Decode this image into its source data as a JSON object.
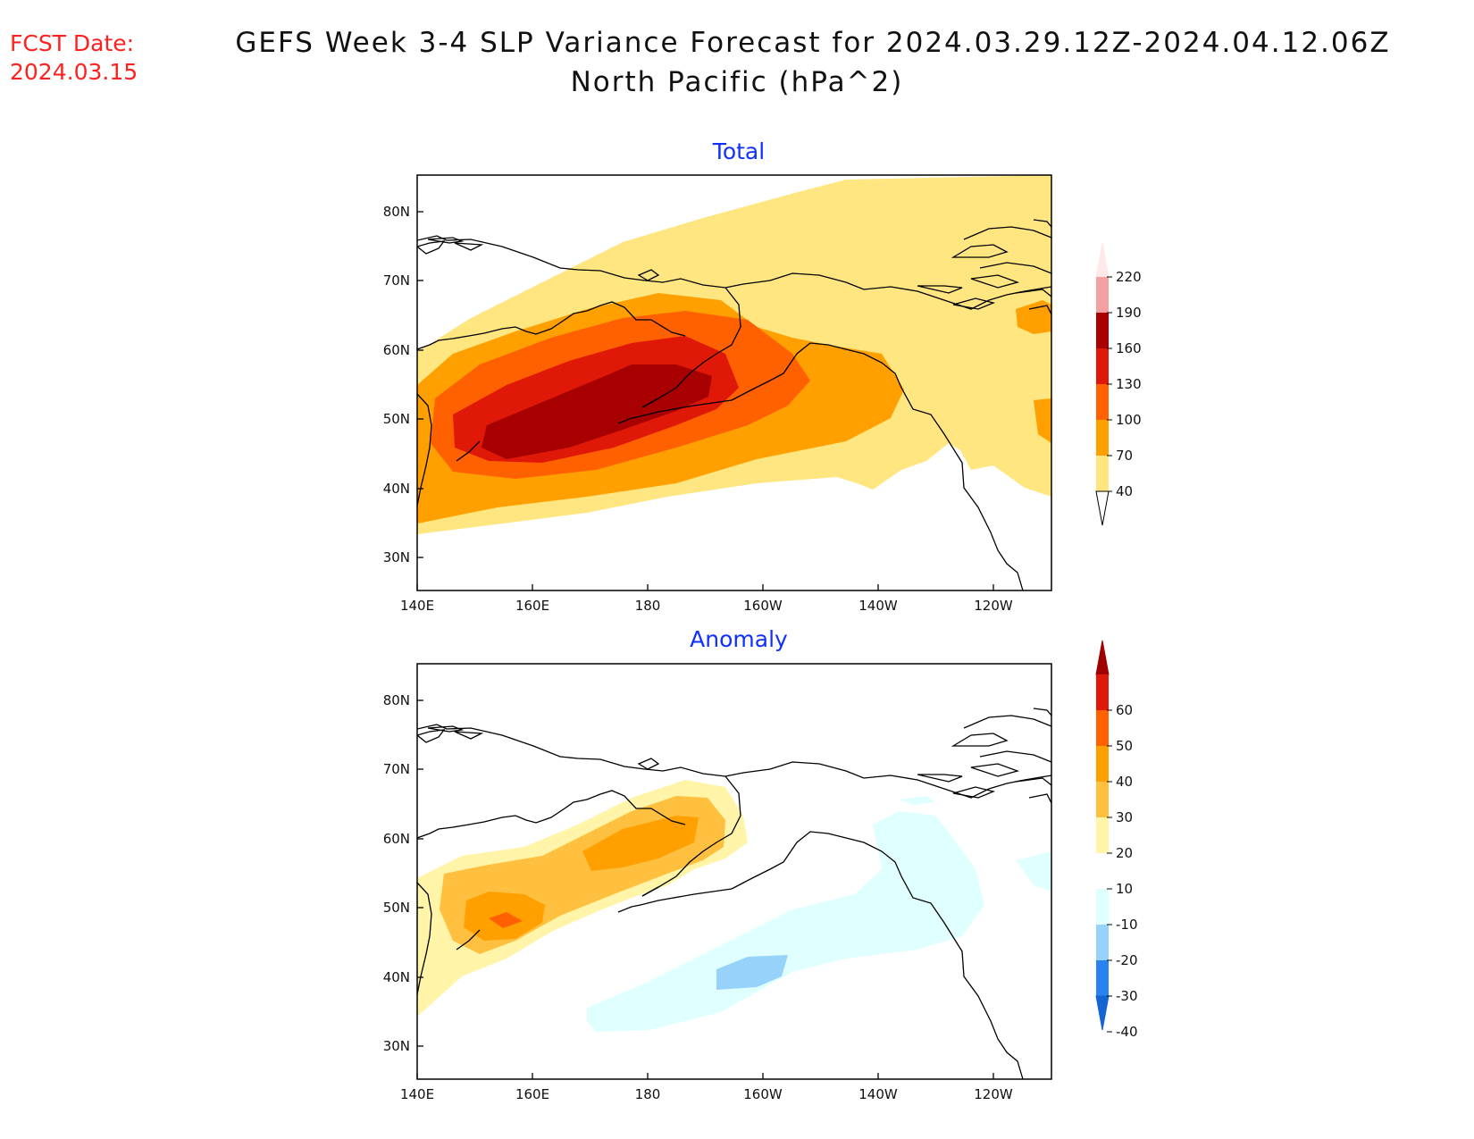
{
  "header": {
    "fcst_label": "FCST Date:",
    "fcst_date": "2024.03.15",
    "title_line1": "GEFS Week 3-4 SLP Variance Forecast for 2024.03.29.12Z-2024.04.12.06Z",
    "title_line2": "North Pacific (hPa^2)"
  },
  "axes": {
    "lat_labels": [
      "80N",
      "70N",
      "60N",
      "50N",
      "40N",
      "30N"
    ],
    "lon_labels": [
      "140E",
      "160E",
      "180",
      "160W",
      "140W",
      "120W"
    ]
  },
  "panels": [
    {
      "id": "total",
      "title": "Total",
      "colorbar": {
        "levels": [
          "40",
          "70",
          "100",
          "130",
          "160",
          "190",
          "220"
        ],
        "colors": [
          "#ffe680",
          "#ffa000",
          "#ff6000",
          "#e01808",
          "#a80000",
          "#f4a0a0",
          "#ffe8e8"
        ]
      }
    },
    {
      "id": "anomaly",
      "title": "Anomaly",
      "colorbar": {
        "levels": [
          "60",
          "50",
          "40",
          "30",
          "20",
          "10",
          "-10",
          "-20",
          "-30",
          "-40"
        ],
        "colors": [
          "#a00000",
          "#e01808",
          "#ff6000",
          "#ffa000",
          "#ffc040",
          "#fff4a8",
          "#ffffff",
          "#e0ffff",
          "#96d2fa",
          "#2882f0",
          "#1464d2"
        ]
      }
    }
  ]
}
